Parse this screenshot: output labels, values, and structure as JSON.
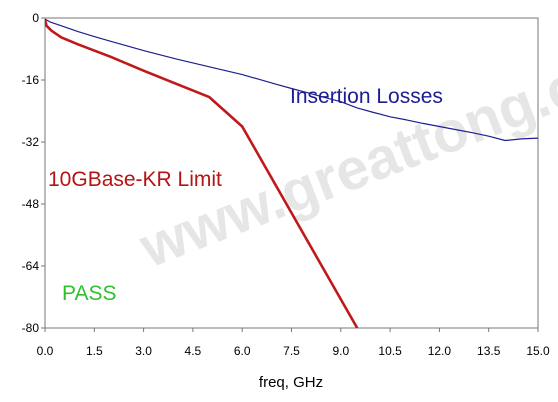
{
  "chart_data": {
    "type": "line",
    "title": "",
    "xlabel": "freq, GHz",
    "ylabel": "",
    "xlim": [
      0,
      15
    ],
    "ylim": [
      -80,
      0
    ],
    "x_ticks": [
      "0.0",
      "1.5",
      "3.0",
      "4.5",
      "6.0",
      "7.5",
      "9.0",
      "10.5",
      "12.0",
      "13.5",
      "15.0"
    ],
    "y_ticks": [
      "0",
      "-16",
      "-32",
      "-48",
      "-64",
      "-80"
    ],
    "grid": false,
    "series": [
      {
        "name": "Insertion Losses",
        "color": "#1f1f8f",
        "x": [
          0,
          0.15,
          0.5,
          1.0,
          1.5,
          2.0,
          2.5,
          3.0,
          3.5,
          4.0,
          4.5,
          5.0,
          5.5,
          6.0,
          6.5,
          7.0,
          7.5,
          8.0,
          8.5,
          9.0,
          9.5,
          10.0,
          10.5,
          11.0,
          11.5,
          12.0,
          12.5,
          13.0,
          13.5,
          14.0,
          14.5,
          15.0
        ],
        "y": [
          -0.3,
          -1.0,
          -2.0,
          -3.5,
          -4.8,
          -6.0,
          -7.2,
          -8.4,
          -9.5,
          -10.6,
          -11.6,
          -12.6,
          -13.6,
          -14.6,
          -15.8,
          -17.0,
          -18.2,
          -19.3,
          -20.5,
          -21.6,
          -23.2,
          -24.4,
          -25.5,
          -26.3,
          -27.2,
          -28.0,
          -28.8,
          -29.6,
          -30.5,
          -31.6,
          -31.2,
          -31.0
        ]
      },
      {
        "name": "10GBase-KR Limit",
        "color": "#c0191c",
        "x": [
          0,
          0.05,
          0.2,
          0.5,
          1.0,
          2.0,
          3.0,
          4.0,
          5.0,
          6.0,
          9.5
        ],
        "y": [
          -0.5,
          -2.0,
          -3.3,
          -5.0,
          -6.8,
          -10.0,
          -13.6,
          -17.0,
          -20.4,
          -28.0,
          -80
        ]
      }
    ],
    "annotations": [
      {
        "text": "Insertion Losses",
        "color": "#1c1c96"
      },
      {
        "text": "10GBase-KR Limit",
        "color": "#b51414"
      },
      {
        "text": "PASS",
        "color": "#2fc02f"
      }
    ]
  }
}
